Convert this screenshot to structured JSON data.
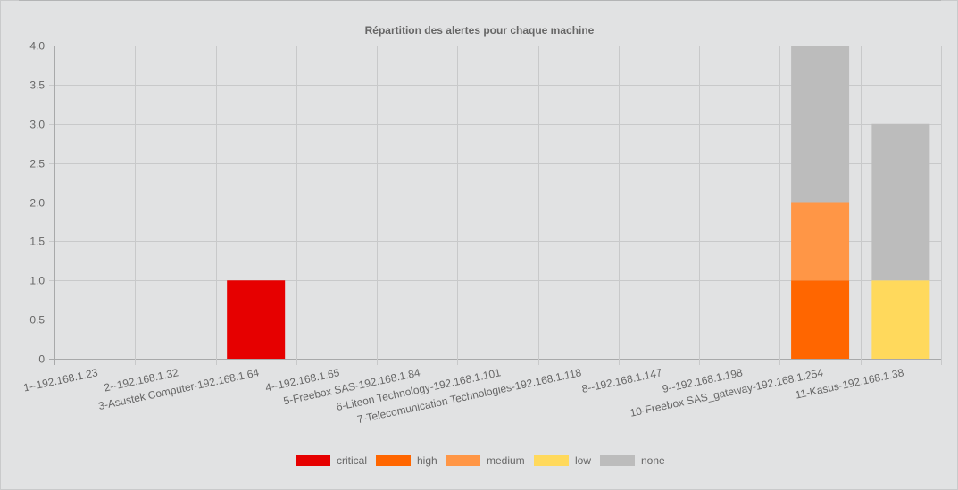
{
  "chart_data": {
    "type": "bar",
    "stacked": true,
    "title": "Répartition des alertes pour chaque machine",
    "categories": [
      "1--192.168.1.23",
      "2--192.168.1.32",
      "3-Asustek Computer-192.168.1.64",
      "4--192.168.1.65",
      "5-Freebox SAS-192.168.1.84",
      "6-Liteon Technology-192.168.1.101",
      "7-Telecomunication Technologies-192.168.1.118",
      "8--192.168.1.147",
      "9--192.168.1.198",
      "10-Freebox SAS_gateway-192.168.1.254",
      "11-Kasus-192.168.1.38"
    ],
    "series": [
      {
        "name": "critical",
        "color": "#e60000",
        "values": [
          0,
          0,
          1,
          0,
          0,
          0,
          0,
          0,
          0,
          0,
          0
        ]
      },
      {
        "name": "high",
        "color": "#ff6600",
        "values": [
          0,
          0,
          0,
          0,
          0,
          0,
          0,
          0,
          0,
          1,
          0
        ]
      },
      {
        "name": "medium",
        "color": "#ff9646",
        "values": [
          0,
          0,
          0,
          0,
          0,
          0,
          0,
          0,
          0,
          1,
          0
        ]
      },
      {
        "name": "low",
        "color": "#ffd95c",
        "values": [
          0,
          0,
          0,
          0,
          0,
          0,
          0,
          0,
          0,
          0,
          1
        ]
      },
      {
        "name": "none",
        "color": "#bcbcbc",
        "values": [
          0,
          0,
          0,
          0,
          0,
          0,
          0,
          0,
          0,
          2,
          2
        ]
      }
    ],
    "yticks": [
      "0",
      "0.5",
      "1.0",
      "1.5",
      "2.0",
      "2.5",
      "3.0",
      "3.5",
      "4.0"
    ],
    "ylim": [
      0,
      4
    ],
    "grid": true,
    "legend_position": "bottom"
  }
}
